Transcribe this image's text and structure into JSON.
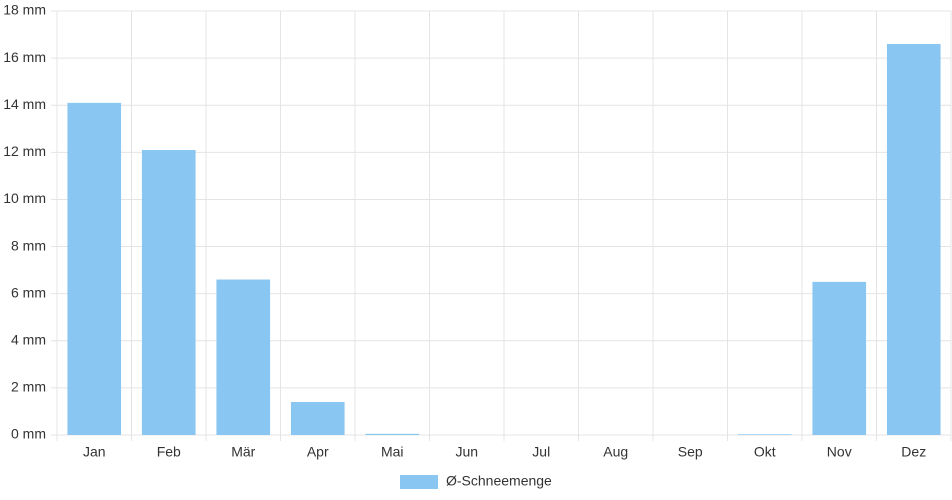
{
  "chart_data": {
    "type": "bar",
    "categories": [
      "Jan",
      "Feb",
      "Mär",
      "Apr",
      "Mai",
      "Jun",
      "Jul",
      "Aug",
      "Sep",
      "Okt",
      "Nov",
      "Dez"
    ],
    "series": [
      {
        "name": "Ø-Schneemenge",
        "color": "#89c6f2",
        "values": [
          14.1,
          12.1,
          6.6,
          1.4,
          0.05,
          0,
          0,
          0,
          0,
          0.03,
          6.5,
          16.6
        ]
      }
    ],
    "ylim": [
      0,
      18
    ],
    "yticks": [
      {
        "value": 0,
        "label": "0 mm"
      },
      {
        "value": 2,
        "label": "2 mm"
      },
      {
        "value": 4,
        "label": "4 mm"
      },
      {
        "value": 6,
        "label": "6 mm"
      },
      {
        "value": 8,
        "label": "8 mm"
      },
      {
        "value": 10,
        "label": "10 mm"
      },
      {
        "value": 12,
        "label": "12 mm"
      },
      {
        "value": 14,
        "label": "14 mm"
      },
      {
        "value": 16,
        "label": "16 mm"
      },
      {
        "value": 18,
        "label": "18 mm"
      }
    ],
    "grid": true
  }
}
